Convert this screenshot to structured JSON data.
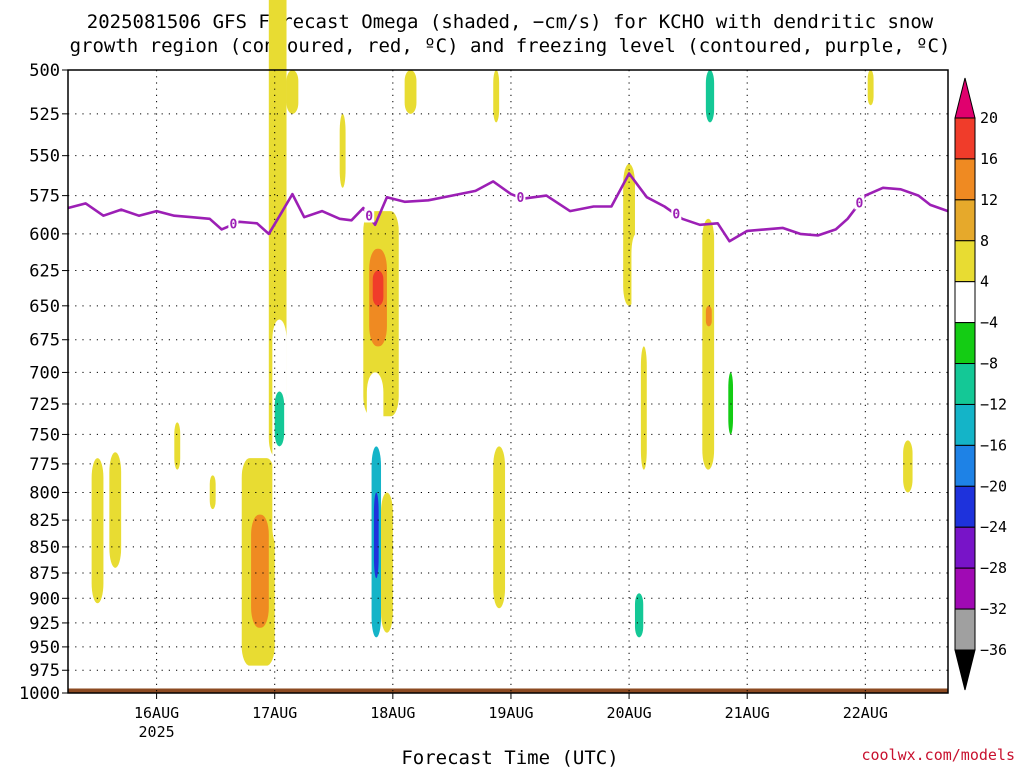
{
  "title": {
    "line1": "2025081506 GFS Forecast Omega (shaded, −cm/s) for KCHO with dendritic snow",
    "line2": "growth region (contoured, red, ºC) and freezing level (contoured, purple, ºC)"
  },
  "credit": "coolwx.com/models",
  "chart_data": {
    "type": "heatmap",
    "title": "2025081506 GFS Forecast Omega (shaded, −cm/s) for KCHO with dendritic snow growth region (contoured, red, ºC) and freezing level (contoured, purple, ºC)",
    "xlabel": "Forecast Time (UTC)",
    "ylabel": "",
    "x_ticks": [
      "16AUG",
      "17AUG",
      "18AUG",
      "19AUG",
      "20AUG",
      "21AUG",
      "22AUG"
    ],
    "x_year_label": "2025",
    "x_range_days": [
      15.25,
      22.7
    ],
    "y_ticks": [
      500,
      525,
      550,
      575,
      600,
      625,
      650,
      675,
      700,
      725,
      750,
      775,
      800,
      825,
      850,
      875,
      900,
      925,
      950,
      975,
      1000
    ],
    "y_range": [
      500,
      1000
    ],
    "grid": true,
    "colorbar": {
      "labels": [
        "20",
        "16",
        "12",
        "8",
        "4",
        "−4",
        "−8",
        "−12",
        "−16",
        "−20",
        "−24",
        "−28",
        "−32",
        "−36"
      ],
      "bins": [
        {
          "min": 20,
          "max": null,
          "color": "#e0006e"
        },
        {
          "min": 16,
          "max": 20,
          "color": "#f03c2a"
        },
        {
          "min": 12,
          "max": 16,
          "color": "#ef8a22"
        },
        {
          "min": 8,
          "max": 12,
          "color": "#e6a92b"
        },
        {
          "min": 4,
          "max": 8,
          "color": "#e8dc32"
        },
        {
          "min": -4,
          "max": 4,
          "color": "#ffffff"
        },
        {
          "min": -8,
          "max": -4,
          "color": "#14cc14"
        },
        {
          "min": -12,
          "max": -8,
          "color": "#14c896"
        },
        {
          "min": -16,
          "max": -12,
          "color": "#14b4c8"
        },
        {
          "min": -20,
          "max": -16,
          "color": "#1e82e6"
        },
        {
          "min": -24,
          "max": -20,
          "color": "#1e32dc"
        },
        {
          "min": -28,
          "max": -24,
          "color": "#7814c8"
        },
        {
          "min": -32,
          "max": -28,
          "color": "#a00ab4"
        },
        {
          "min": -36,
          "max": -32,
          "color": "#a0a0a0"
        },
        {
          "min": null,
          "max": -36,
          "color": "#000000"
        }
      ]
    },
    "freezing_level": {
      "label": "0",
      "color": "#9c1fb5",
      "points": [
        [
          15.25,
          583
        ],
        [
          15.4,
          580
        ],
        [
          15.55,
          588
        ],
        [
          15.7,
          584
        ],
        [
          15.85,
          588
        ],
        [
          16.0,
          585
        ],
        [
          16.15,
          588
        ],
        [
          16.3,
          589
        ],
        [
          16.45,
          590
        ],
        [
          16.55,
          597
        ],
        [
          16.7,
          592
        ],
        [
          16.85,
          593
        ],
        [
          16.95,
          600
        ],
        [
          17.05,
          587
        ],
        [
          17.15,
          574
        ],
        [
          17.25,
          589
        ],
        [
          17.4,
          585
        ],
        [
          17.55,
          590
        ],
        [
          17.65,
          591
        ],
        [
          17.75,
          583
        ],
        [
          17.85,
          594
        ],
        [
          17.95,
          576
        ],
        [
          18.1,
          579
        ],
        [
          18.3,
          578
        ],
        [
          18.5,
          575
        ],
        [
          18.7,
          572
        ],
        [
          18.85,
          566
        ],
        [
          19.0,
          574
        ],
        [
          19.1,
          577
        ],
        [
          19.3,
          575
        ],
        [
          19.5,
          585
        ],
        [
          19.7,
          582
        ],
        [
          19.85,
          582
        ],
        [
          20.0,
          561
        ],
        [
          20.15,
          576
        ],
        [
          20.3,
          582
        ],
        [
          20.45,
          590
        ],
        [
          20.6,
          594
        ],
        [
          20.75,
          593
        ],
        [
          20.85,
          605
        ],
        [
          21.0,
          598
        ],
        [
          21.15,
          597
        ],
        [
          21.3,
          596
        ],
        [
          21.45,
          600
        ],
        [
          21.6,
          601
        ],
        [
          21.75,
          597
        ],
        [
          21.85,
          590
        ],
        [
          22.0,
          575
        ],
        [
          22.15,
          570
        ],
        [
          22.3,
          571
        ],
        [
          22.45,
          575
        ],
        [
          22.55,
          581
        ],
        [
          22.7,
          585
        ]
      ],
      "label_points": [
        [
          16.65,
          0
        ],
        [
          17.8,
          0
        ],
        [
          19.08,
          0
        ],
        [
          20.4,
          0
        ],
        [
          21.95,
          0
        ]
      ]
    },
    "shaded_regions": [
      {
        "value": 4,
        "x": [
          15.45,
          15.55
        ],
        "p": [
          770,
          905
        ]
      },
      {
        "value": 4,
        "x": [
          15.6,
          15.7
        ],
        "p": [
          765,
          870
        ]
      },
      {
        "value": 4,
        "x": [
          16.15,
          16.2
        ],
        "p": [
          740,
          780
        ]
      },
      {
        "value": 4,
        "x": [
          16.45,
          16.5
        ],
        "p": [
          785,
          815
        ]
      },
      {
        "value": -4,
        "x": [
          15.98,
          16.08
        ],
        "p": [
          500,
          975
        ]
      },
      {
        "value": -4,
        "x": [
          16.1,
          16.18
        ],
        "p": [
          880,
          920
        ]
      },
      {
        "value": 4,
        "x": [
          16.72,
          17.0
        ],
        "p": [
          770,
          970
        ]
      },
      {
        "value": 12,
        "x": [
          16.8,
          16.95
        ],
        "p": [
          820,
          930
        ]
      },
      {
        "value": 4,
        "x": [
          16.95,
          17.1
        ],
        "p": [
          425,
          770
        ]
      },
      {
        "value": -4,
        "x": [
          16.62,
          16.72
        ],
        "p": [
          500,
          970
        ]
      },
      {
        "value": -4,
        "x": [
          16.98,
          17.1
        ],
        "p": [
          660,
          850
        ]
      },
      {
        "value": -12,
        "x": [
          17.0,
          17.08
        ],
        "p": [
          715,
          760
        ]
      },
      {
        "value": -4,
        "x": [
          17.12,
          17.2
        ],
        "p": [
          900,
          960
        ]
      },
      {
        "value": 4,
        "x": [
          17.1,
          17.2
        ],
        "p": [
          500,
          525
        ]
      },
      {
        "value": 4,
        "x": [
          17.55,
          17.6
        ],
        "p": [
          525,
          570
        ]
      },
      {
        "value": 4,
        "x": [
          17.75,
          18.05
        ],
        "p": [
          585,
          735
        ]
      },
      {
        "value": 12,
        "x": [
          17.8,
          17.95
        ],
        "p": [
          610,
          680
        ]
      },
      {
        "value": 16,
        "x": [
          17.83,
          17.92
        ],
        "p": [
          625,
          650
        ]
      },
      {
        "value": -4,
        "x": [
          17.78,
          17.92
        ],
        "p": [
          700,
          975
        ]
      },
      {
        "value": -16,
        "x": [
          17.82,
          17.9
        ],
        "p": [
          760,
          940
        ]
      },
      {
        "value": -24,
        "x": [
          17.84,
          17.88
        ],
        "p": [
          800,
          880
        ]
      },
      {
        "value": 4,
        "x": [
          17.9,
          18.0
        ],
        "p": [
          800,
          935
        ]
      },
      {
        "value": -4,
        "x": [
          18.05,
          18.12
        ],
        "p": [
          780,
          840
        ]
      },
      {
        "value": 4,
        "x": [
          18.1,
          18.2
        ],
        "p": [
          500,
          525
        ]
      },
      {
        "value": 4,
        "x": [
          18.85,
          18.95
        ],
        "p": [
          760,
          910
        ]
      },
      {
        "value": -4,
        "x": [
          18.85,
          19.05
        ],
        "p": [
          610,
          700
        ]
      },
      {
        "value": -4,
        "x": [
          19.02,
          19.18
        ],
        "p": [
          895,
          960
        ]
      },
      {
        "value": 4,
        "x": [
          18.85,
          18.9
        ],
        "p": [
          500,
          530
        ]
      },
      {
        "value": 4,
        "x": [
          19.95,
          20.05
        ],
        "p": [
          555,
          650
        ]
      },
      {
        "value": -4,
        "x": [
          20.02,
          20.1
        ],
        "p": [
          600,
          970
        ]
      },
      {
        "value": -4,
        "x": [
          20.0,
          20.18
        ],
        "p": [
          860,
          965
        ]
      },
      {
        "value": -12,
        "x": [
          20.05,
          20.12
        ],
        "p": [
          895,
          940
        ]
      },
      {
        "value": 4,
        "x": [
          20.1,
          20.15
        ],
        "p": [
          680,
          780
        ]
      },
      {
        "value": 4,
        "x": [
          20.62,
          20.72
        ],
        "p": [
          590,
          780
        ]
      },
      {
        "value": 12,
        "x": [
          20.65,
          20.7
        ],
        "p": [
          650,
          665
        ]
      },
      {
        "value": -4,
        "x": [
          20.62,
          20.88
        ],
        "p": [
          500,
          545
        ]
      },
      {
        "value": -12,
        "x": [
          20.65,
          20.72
        ],
        "p": [
          500,
          530
        ]
      },
      {
        "value": -4,
        "x": [
          20.82,
          20.9
        ],
        "p": [
          665,
          780
        ]
      },
      {
        "value": -8,
        "x": [
          20.84,
          20.88
        ],
        "p": [
          700,
          750
        ]
      },
      {
        "value": -4,
        "x": [
          20.95,
          21.25
        ],
        "p": [
          815,
          935
        ]
      },
      {
        "value": -4,
        "x": [
          21.8,
          22.2
        ],
        "p": [
          840,
          920
        ]
      },
      {
        "value": 4,
        "x": [
          22.02,
          22.07
        ],
        "p": [
          500,
          520
        ]
      },
      {
        "value": 4,
        "x": [
          22.32,
          22.4
        ],
        "p": [
          755,
          800
        ]
      },
      {
        "value": -4,
        "x": [
          22.45,
          22.55
        ],
        "p": [
          768,
          772
        ]
      },
      {
        "value": -4,
        "x": [
          22.72,
          22.85
        ],
        "p": [
          750,
          850
        ]
      }
    ]
  }
}
